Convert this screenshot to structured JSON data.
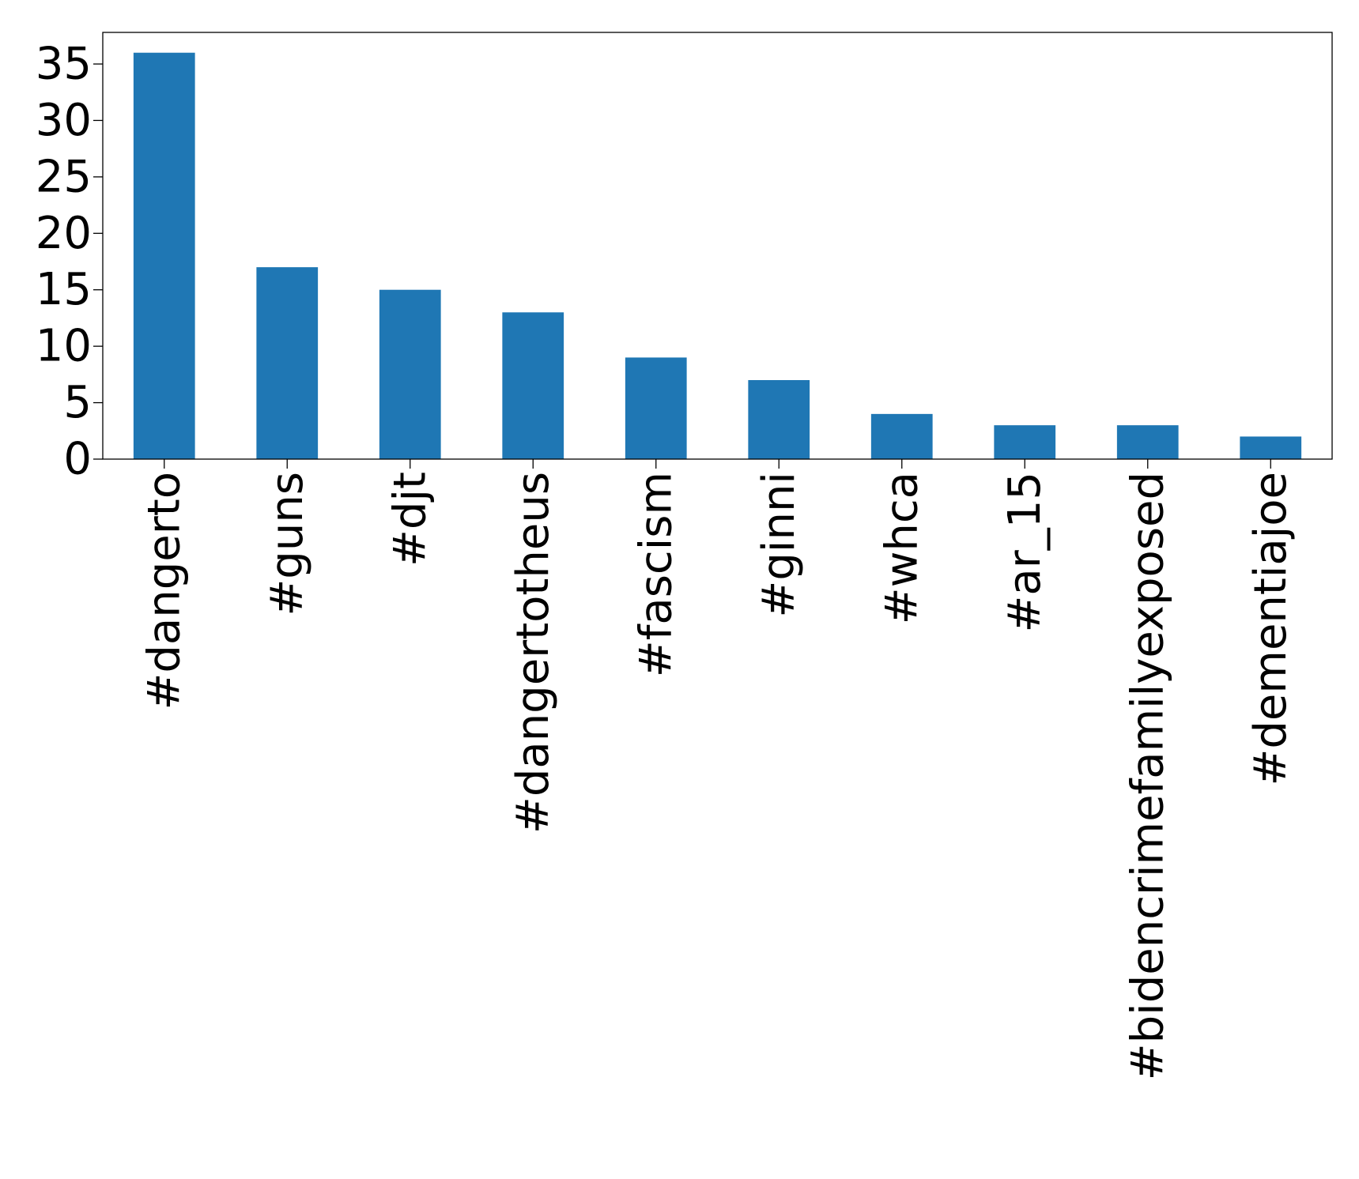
{
  "chart_data": {
    "type": "bar",
    "title": "",
    "xlabel": "",
    "ylabel": "",
    "categories": [
      "#dangerto",
      "#guns",
      "#djt",
      "#dangertotheus",
      "#fascism",
      "#ginni",
      "#whca",
      "#ar_15",
      "#bidencrimefamilyexposed",
      "#dementiajoe"
    ],
    "values": [
      36,
      17,
      15,
      13,
      9,
      7,
      4,
      3,
      3,
      2
    ],
    "ylim": [
      0,
      37.8
    ],
    "yticks": [
      0,
      5,
      10,
      15,
      20,
      25,
      30,
      35
    ],
    "bar_color": "#1f77b4",
    "grid": false,
    "legend": "none"
  }
}
